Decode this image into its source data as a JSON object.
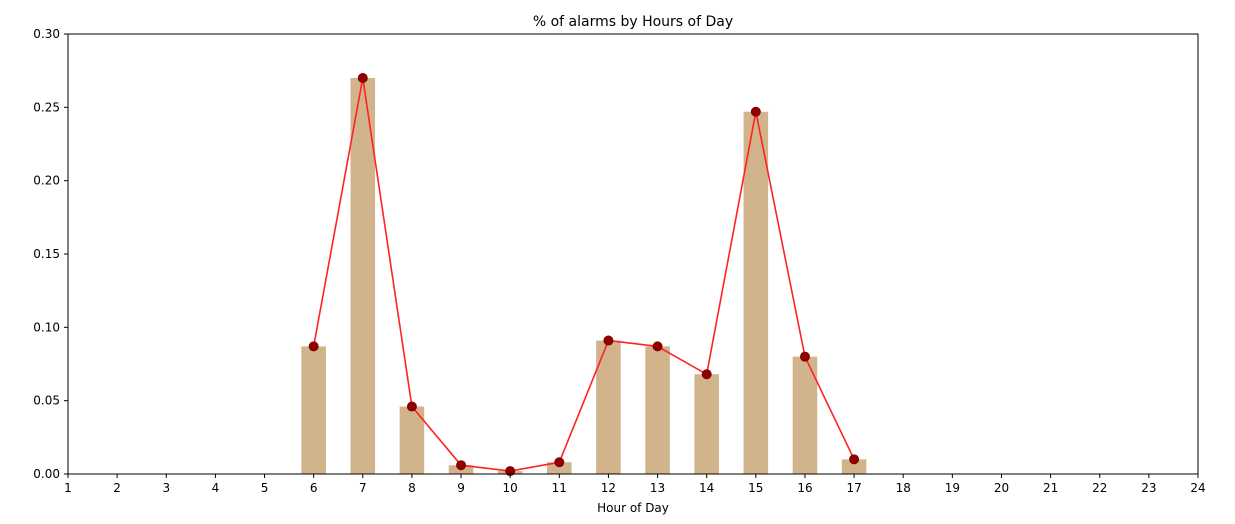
{
  "chart_data": {
    "type": "bar",
    "title": "% of alarms by Hours of Day",
    "xlabel": "Hour of Day",
    "ylabel": "",
    "xlim": [
      1,
      24
    ],
    "ylim": [
      0,
      0.3
    ],
    "xticks": [
      "1",
      "2",
      "3",
      "4",
      "5",
      "6",
      "7",
      "8",
      "9",
      "10",
      "11",
      "12",
      "13",
      "14",
      "15",
      "16",
      "17",
      "18",
      "19",
      "20",
      "21",
      "22",
      "23",
      "24"
    ],
    "yticks": [
      "0.00",
      "0.05",
      "0.10",
      "0.15",
      "0.20",
      "0.25",
      "0.30"
    ],
    "grid": false,
    "colors": {
      "bar": "#d2b48c",
      "line": "#ff2222",
      "marker": "#8b0000"
    },
    "x": [
      6,
      7,
      8,
      9,
      10,
      11,
      12,
      13,
      14,
      15,
      16,
      17
    ],
    "values": [
      0.087,
      0.27,
      0.046,
      0.006,
      0.002,
      0.008,
      0.091,
      0.087,
      0.068,
      0.247,
      0.08,
      0.01
    ]
  }
}
